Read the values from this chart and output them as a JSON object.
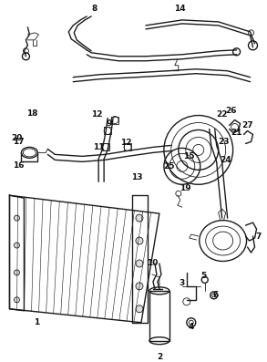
{
  "background_color": "#ffffff",
  "fig_width": 2.93,
  "fig_height": 3.97,
  "dpi": 100,
  "image_data": ""
}
